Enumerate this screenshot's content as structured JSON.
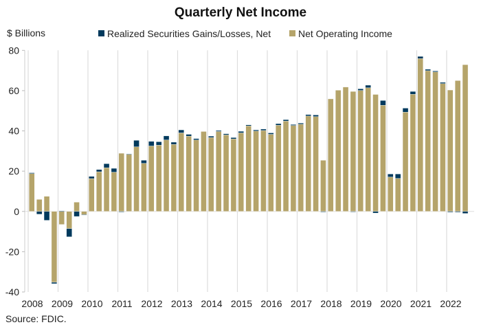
{
  "chart_data": {
    "type": "bar",
    "stacked": true,
    "title": "Quarterly Net Income",
    "ylabel": "$ Billions",
    "xlabel": "",
    "source": "Source: FDIC.",
    "ylim": [
      -40,
      80
    ],
    "yticks": [
      -40,
      -20,
      0,
      20,
      40,
      60,
      80
    ],
    "xtick_labels": [
      "2008",
      "2009",
      "2010",
      "2011",
      "2012",
      "2013",
      "2014",
      "2015",
      "2016",
      "2017",
      "2018",
      "2019",
      "2020",
      "2021",
      "2022"
    ],
    "grid": "vertical",
    "legend": "top",
    "categories": [
      "2008Q1",
      "2008Q2",
      "2008Q3",
      "2008Q4",
      "2009Q1",
      "2009Q2",
      "2009Q3",
      "2009Q4",
      "2010Q1",
      "2010Q2",
      "2010Q3",
      "2010Q4",
      "2011Q1",
      "2011Q2",
      "2011Q3",
      "2011Q4",
      "2012Q1",
      "2012Q2",
      "2012Q3",
      "2012Q4",
      "2013Q1",
      "2013Q2",
      "2013Q3",
      "2013Q4",
      "2014Q1",
      "2014Q2",
      "2014Q3",
      "2014Q4",
      "2015Q1",
      "2015Q2",
      "2015Q3",
      "2015Q4",
      "2016Q1",
      "2016Q2",
      "2016Q3",
      "2016Q4",
      "2017Q1",
      "2017Q2",
      "2017Q3",
      "2017Q4",
      "2018Q1",
      "2018Q2",
      "2018Q3",
      "2018Q4",
      "2019Q1",
      "2019Q2",
      "2019Q3",
      "2019Q4",
      "2020Q1",
      "2020Q2",
      "2020Q3",
      "2020Q4",
      "2021Q1",
      "2021Q2",
      "2021Q3",
      "2021Q4",
      "2022Q1",
      "2022Q2",
      "2022Q3"
    ],
    "series": [
      {
        "name": "Realized Securities Gains/Losses, Net",
        "color": "#003A5D",
        "values": [
          0.4,
          -1.4,
          -4.4,
          -0.7,
          0.3,
          -4.1,
          -2.5,
          -0.2,
          1.1,
          1.1,
          2.0,
          1.9,
          -0.3,
          0.3,
          3.2,
          1.5,
          2.3,
          1.7,
          2.0,
          1.1,
          1.5,
          0.9,
          0.7,
          0.0,
          0.7,
          0.5,
          0.6,
          0.7,
          0.8,
          0.5,
          0.6,
          0.7,
          0.7,
          0.8,
          0.7,
          0.5,
          0.6,
          0.7,
          0.8,
          -0.3,
          0.0,
          0.0,
          0.0,
          -0.2,
          0.8,
          1.3,
          -0.8,
          2.4,
          1.5,
          2.2,
          2.0,
          1.4,
          1.1,
          0.7,
          0.5,
          0.6,
          -0.4,
          -0.4,
          -1.0
        ]
      },
      {
        "name": "Net Operating Income",
        "color": "#B5A46A",
        "values": [
          18.8,
          6.0,
          7.5,
          -35.2,
          -6.5,
          -8.5,
          4.6,
          -1.6,
          16.3,
          19.7,
          21.7,
          19.5,
          28.9,
          28.3,
          32.1,
          23.9,
          32.5,
          32.9,
          35.5,
          33.3,
          39.0,
          37.4,
          35.5,
          39.7,
          36.7,
          39.7,
          38.0,
          36.0,
          39.0,
          42.5,
          39.9,
          40.2,
          38.3,
          42.8,
          44.9,
          42.7,
          43.3,
          47.4,
          47.1,
          25.4,
          55.9,
          60.2,
          61.8,
          59.6,
          60.1,
          61.4,
          58.1,
          52.7,
          17.1,
          16.4,
          49.3,
          58.2,
          75.9,
          69.9,
          69.3,
          63.5,
          60.3,
          65.0,
          72.9
        ]
      }
    ]
  }
}
